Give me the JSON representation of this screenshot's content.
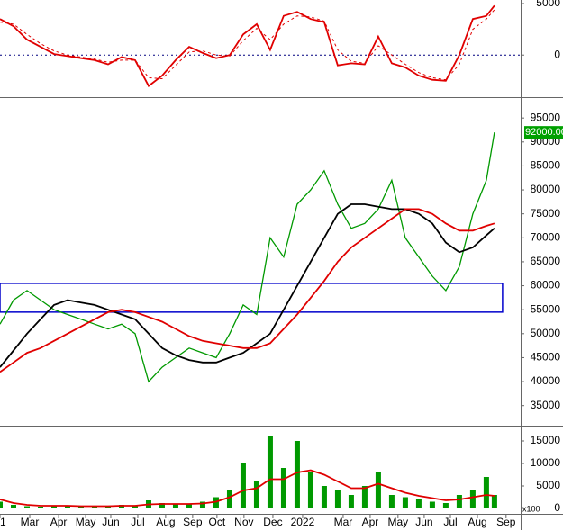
{
  "chart_data": [
    {
      "type": "line",
      "x": [
        0,
        0.5,
        1,
        1.5,
        2,
        2.5,
        3,
        3.5,
        4,
        4.5,
        5,
        5.5,
        6,
        6.5,
        7,
        7.5,
        8,
        8.5,
        9,
        9.5,
        10,
        10.5,
        11,
        11.5,
        12,
        12.5,
        13,
        13.5,
        14,
        14.5,
        15,
        15.5,
        16,
        16.5,
        17,
        17.5,
        18,
        18.3
      ],
      "xlim": [
        0,
        19.27
      ],
      "ylim": [
        -4000,
        5350
      ],
      "yticks": [
        0,
        5000
      ],
      "zero_line": true,
      "series": [
        {
          "color": "#e00000",
          "values": [
            3500,
            2800,
            1500,
            800,
            100,
            -100,
            -300,
            -500,
            -900,
            -200,
            -500,
            -3000,
            -2000,
            -500,
            800,
            200,
            -300,
            0,
            2000,
            3000,
            500,
            3800,
            4200,
            3500,
            3200,
            -1000,
            -800,
            -900,
            1800,
            -800,
            -1200,
            -2000,
            -2400,
            -2500,
            0,
            3500,
            3800,
            4800
          ]
        },
        {
          "color": "#e00000",
          "dashed": true,
          "values": [
            3200,
            3000,
            2000,
            1100,
            400,
            0,
            -200,
            -400,
            -700,
            -500,
            -500,
            -2200,
            -2300,
            -1000,
            300,
            400,
            0,
            -100,
            1400,
            2600,
            1500,
            3000,
            3800,
            3700,
            3300,
            500,
            -600,
            -800,
            900,
            0,
            -900,
            -1700,
            -2200,
            -2400,
            -900,
            2500,
            3500,
            4400
          ]
        }
      ]
    },
    {
      "type": "line",
      "x": [
        0,
        0.5,
        1,
        1.5,
        2,
        2.5,
        3,
        3.5,
        4,
        4.5,
        5,
        5.5,
        6,
        6.5,
        7,
        7.5,
        8,
        8.5,
        9,
        9.5,
        10,
        10.5,
        11,
        11.5,
        12,
        12.5,
        13,
        13.5,
        14,
        14.5,
        15,
        15.5,
        16,
        16.5,
        17,
        17.5,
        18,
        18.3
      ],
      "xlim": [
        0,
        19.27
      ],
      "ylim": [
        31000,
        98600
      ],
      "yticks": [
        35000,
        40000,
        45000,
        50000,
        55000,
        60000,
        65000,
        70000,
        75000,
        80000,
        85000,
        90000,
        95000
      ],
      "series": [
        {
          "color": "#009900",
          "values": [
            52000,
            57000,
            59000,
            57000,
            55000,
            54000,
            53000,
            52000,
            51000,
            52000,
            50000,
            40000,
            43000,
            45000,
            47000,
            46000,
            45000,
            50000,
            56000,
            54000,
            70000,
            66000,
            77000,
            80000,
            84000,
            77000,
            72000,
            73000,
            76000,
            82000,
            70000,
            66000,
            62000,
            59000,
            64000,
            75000,
            82000,
            92000
          ]
        },
        {
          "color": "#000000",
          "values": [
            43000,
            46500,
            50000,
            53000,
            56000,
            57000,
            56500,
            56000,
            55000,
            54000,
            53000,
            50000,
            47000,
            45500,
            44500,
            44000,
            44000,
            45000,
            46000,
            48000,
            50000,
            55000,
            60000,
            65000,
            70000,
            75000,
            77000,
            77000,
            76500,
            76000,
            76000,
            75000,
            73000,
            69000,
            67000,
            68000,
            70500,
            72000
          ]
        },
        {
          "color": "#e00000",
          "values": [
            42000,
            44000,
            46000,
            47000,
            48500,
            50000,
            51500,
            53000,
            54500,
            55000,
            54500,
            53500,
            52500,
            51000,
            49500,
            48500,
            48000,
            47500,
            47000,
            47000,
            48000,
            51000,
            54000,
            57500,
            61000,
            65000,
            68000,
            70000,
            72000,
            74000,
            76000,
            76000,
            75000,
            73000,
            71500,
            71500,
            72500,
            73000
          ]
        }
      ],
      "box": {
        "x": [
          0,
          18.6
        ],
        "y": [
          54500,
          60500
        ],
        "color": "#0000cc"
      },
      "annotations": [
        {
          "text": "92000.00",
          "y": 92000
        }
      ]
    },
    {
      "type": "bar",
      "x": [
        0,
        0.5,
        1,
        1.5,
        2,
        2.5,
        3,
        3.5,
        4,
        4.5,
        5,
        5.5,
        6,
        6.5,
        7,
        7.5,
        8,
        8.5,
        9,
        9.5,
        10,
        10.5,
        11,
        11.5,
        12,
        12.5,
        13,
        13.5,
        14,
        14.5,
        15,
        15.5,
        16,
        16.5,
        17,
        17.5,
        18,
        18.3
      ],
      "xlim": [
        0,
        19.27
      ],
      "ylim": [
        -1000,
        17800
      ],
      "yticks": [
        0,
        5000,
        10000,
        15000
      ],
      "unit_label": "x100",
      "series": [
        {
          "color": "#009900",
          "values": [
            1500,
            800,
            500,
            400,
            600,
            700,
            500,
            400,
            600,
            800,
            500,
            1800,
            1200,
            900,
            1000,
            1500,
            2500,
            4000,
            10000,
            6000,
            16000,
            9000,
            15000,
            8000,
            5000,
            4000,
            3000,
            5000,
            8000,
            3000,
            2500,
            2000,
            1500,
            1200,
            3000,
            4000,
            7000,
            3000
          ]
        },
        {
          "color": "#e00000",
          "line": true,
          "values": [
            2000,
            1200,
            800,
            600,
            600,
            600,
            500,
            500,
            500,
            600,
            600,
            900,
            1000,
            1000,
            1000,
            1100,
            1500,
            2500,
            4000,
            4500,
            6500,
            6500,
            8000,
            8500,
            7500,
            6000,
            4500,
            4500,
            5500,
            4500,
            3500,
            2800,
            2300,
            1800,
            2000,
            2500,
            3000,
            2800
          ]
        }
      ],
      "xticks": [
        {
          "value": 0,
          "label": "1"
        },
        {
          "value": 1.1,
          "label": "Mar"
        },
        {
          "value": 2.17,
          "label": "Apr"
        },
        {
          "value": 3.17,
          "label": "May"
        },
        {
          "value": 4.1,
          "label": "Jun"
        },
        {
          "value": 5.1,
          "label": "Jul"
        },
        {
          "value": 6.13,
          "label": "Aug"
        },
        {
          "value": 7.13,
          "label": "Sep"
        },
        {
          "value": 8.03,
          "label": "Oct"
        },
        {
          "value": 9.03,
          "label": "Nov"
        },
        {
          "value": 10.1,
          "label": "Dec"
        },
        {
          "value": 11.2,
          "label": "2022"
        },
        {
          "value": 12.7,
          "label": "Mar"
        },
        {
          "value": 13.7,
          "label": "Apr"
        },
        {
          "value": 14.73,
          "label": "May"
        },
        {
          "value": 15.7,
          "label": "Jun"
        },
        {
          "value": 16.67,
          "label": "Jul"
        },
        {
          "value": 17.67,
          "label": "Aug"
        },
        {
          "value": 18.73,
          "label": "Sep"
        }
      ]
    }
  ]
}
